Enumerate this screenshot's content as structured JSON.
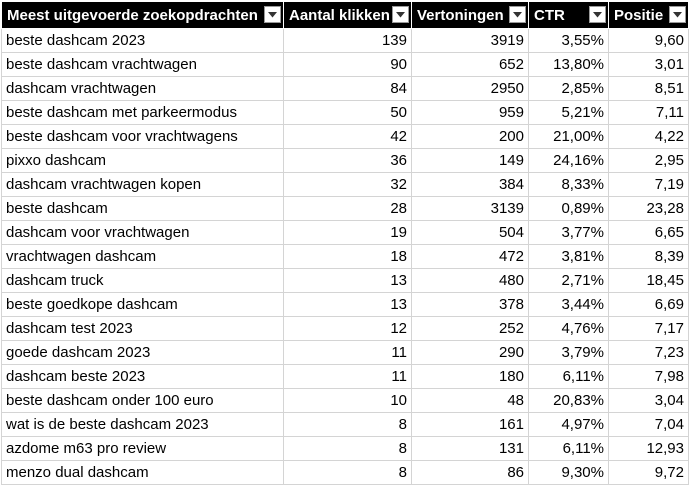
{
  "headers": [
    "Meest uitgevoerde zoekopdrachten",
    "Aantal klikken",
    "Vertoningen",
    "CTR",
    "Positie"
  ],
  "filter_icon": "dropdown-arrow-icon",
  "rows": [
    [
      "beste dashcam 2023",
      "139",
      "3919",
      "3,55%",
      "9,60"
    ],
    [
      "beste dashcam vrachtwagen",
      "90",
      "652",
      "13,80%",
      "3,01"
    ],
    [
      "dashcam vrachtwagen",
      "84",
      "2950",
      "2,85%",
      "8,51"
    ],
    [
      "beste dashcam met parkeermodus",
      "50",
      "959",
      "5,21%",
      "7,11"
    ],
    [
      "beste dashcam voor vrachtwagens",
      "42",
      "200",
      "21,00%",
      "4,22"
    ],
    [
      "pixxo dashcam",
      "36",
      "149",
      "24,16%",
      "2,95"
    ],
    [
      "dashcam vrachtwagen kopen",
      "32",
      "384",
      "8,33%",
      "7,19"
    ],
    [
      "beste dashcam",
      "28",
      "3139",
      "0,89%",
      "23,28"
    ],
    [
      "dashcam voor vrachtwagen",
      "19",
      "504",
      "3,77%",
      "6,65"
    ],
    [
      "vrachtwagen dashcam",
      "18",
      "472",
      "3,81%",
      "8,39"
    ],
    [
      "dashcam truck",
      "13",
      "480",
      "2,71%",
      "18,45"
    ],
    [
      "beste goedkope dashcam",
      "13",
      "378",
      "3,44%",
      "6,69"
    ],
    [
      "dashcam test 2023",
      "12",
      "252",
      "4,76%",
      "7,17"
    ],
    [
      "goede dashcam 2023",
      "11",
      "290",
      "3,79%",
      "7,23"
    ],
    [
      "dashcam beste 2023",
      "11",
      "180",
      "6,11%",
      "7,98"
    ],
    [
      "beste dashcam onder 100 euro",
      "10",
      "48",
      "20,83%",
      "3,04"
    ],
    [
      "wat is de beste dashcam 2023",
      "8",
      "161",
      "4,97%",
      "7,04"
    ],
    [
      "azdome m63 pro review",
      "8",
      "131",
      "6,11%",
      "12,93"
    ],
    [
      "menzo dual dashcam",
      "8",
      "86",
      "9,30%",
      "9,72"
    ]
  ]
}
